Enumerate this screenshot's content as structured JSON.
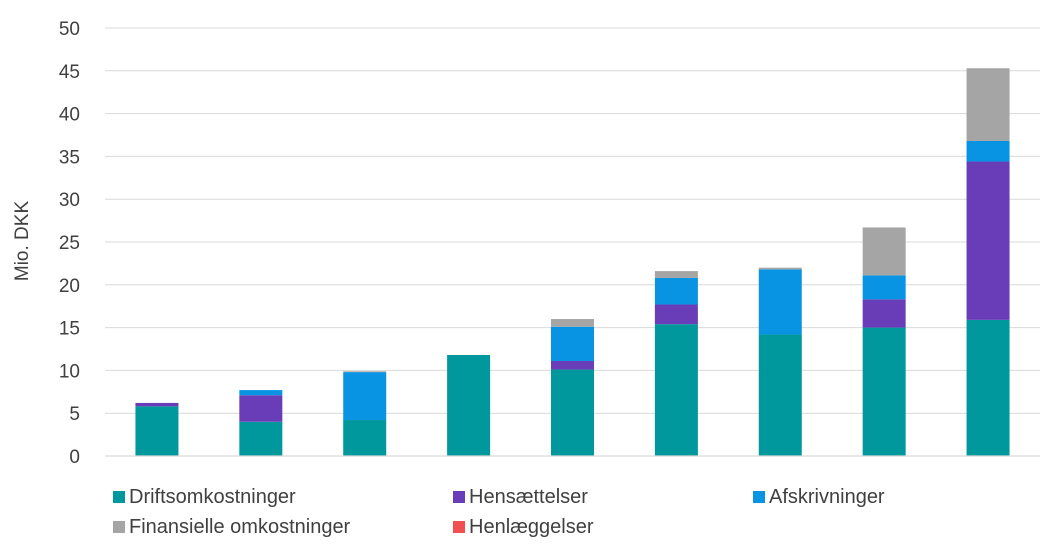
{
  "chart_data": {
    "type": "bar",
    "stacked": true,
    "title": "",
    "xlabel": "",
    "ylabel": "Mio. DKK",
    "ylim": [
      0,
      50
    ],
    "yticks": [
      0,
      5,
      10,
      15,
      20,
      25,
      30,
      35,
      40,
      45,
      50
    ],
    "grid": true,
    "legend_position": "bottom",
    "categories": [
      "",
      "",
      "",
      "",
      "",
      "",
      "",
      "",
      ""
    ],
    "series": [
      {
        "name": "Driftsomkostninger",
        "color": "#00979D",
        "values": [
          5.8,
          4.0,
          4.2,
          11.8,
          10.1,
          15.4,
          14.2,
          15.0,
          15.9
        ]
      },
      {
        "name": "Hensættelser",
        "color": "#6A3DB8",
        "values": [
          0.4,
          3.1,
          0.0,
          0.0,
          1.0,
          2.3,
          0.0,
          3.3,
          18.5
        ]
      },
      {
        "name": "Afskrivninger",
        "color": "#0994E3",
        "values": [
          0.0,
          0.6,
          5.6,
          0.0,
          4.0,
          3.1,
          7.6,
          2.8,
          2.4
        ]
      },
      {
        "name": "Finansielle omkostninger",
        "color": "#A5A5A5",
        "values": [
          0.0,
          0.0,
          0.1,
          0.0,
          0.9,
          0.8,
          0.2,
          5.6,
          8.5
        ]
      },
      {
        "name": "Henlæggelser",
        "color": "#F0504F",
        "values": [
          0,
          0,
          0,
          0,
          0,
          0,
          0,
          0,
          0
        ]
      }
    ]
  }
}
